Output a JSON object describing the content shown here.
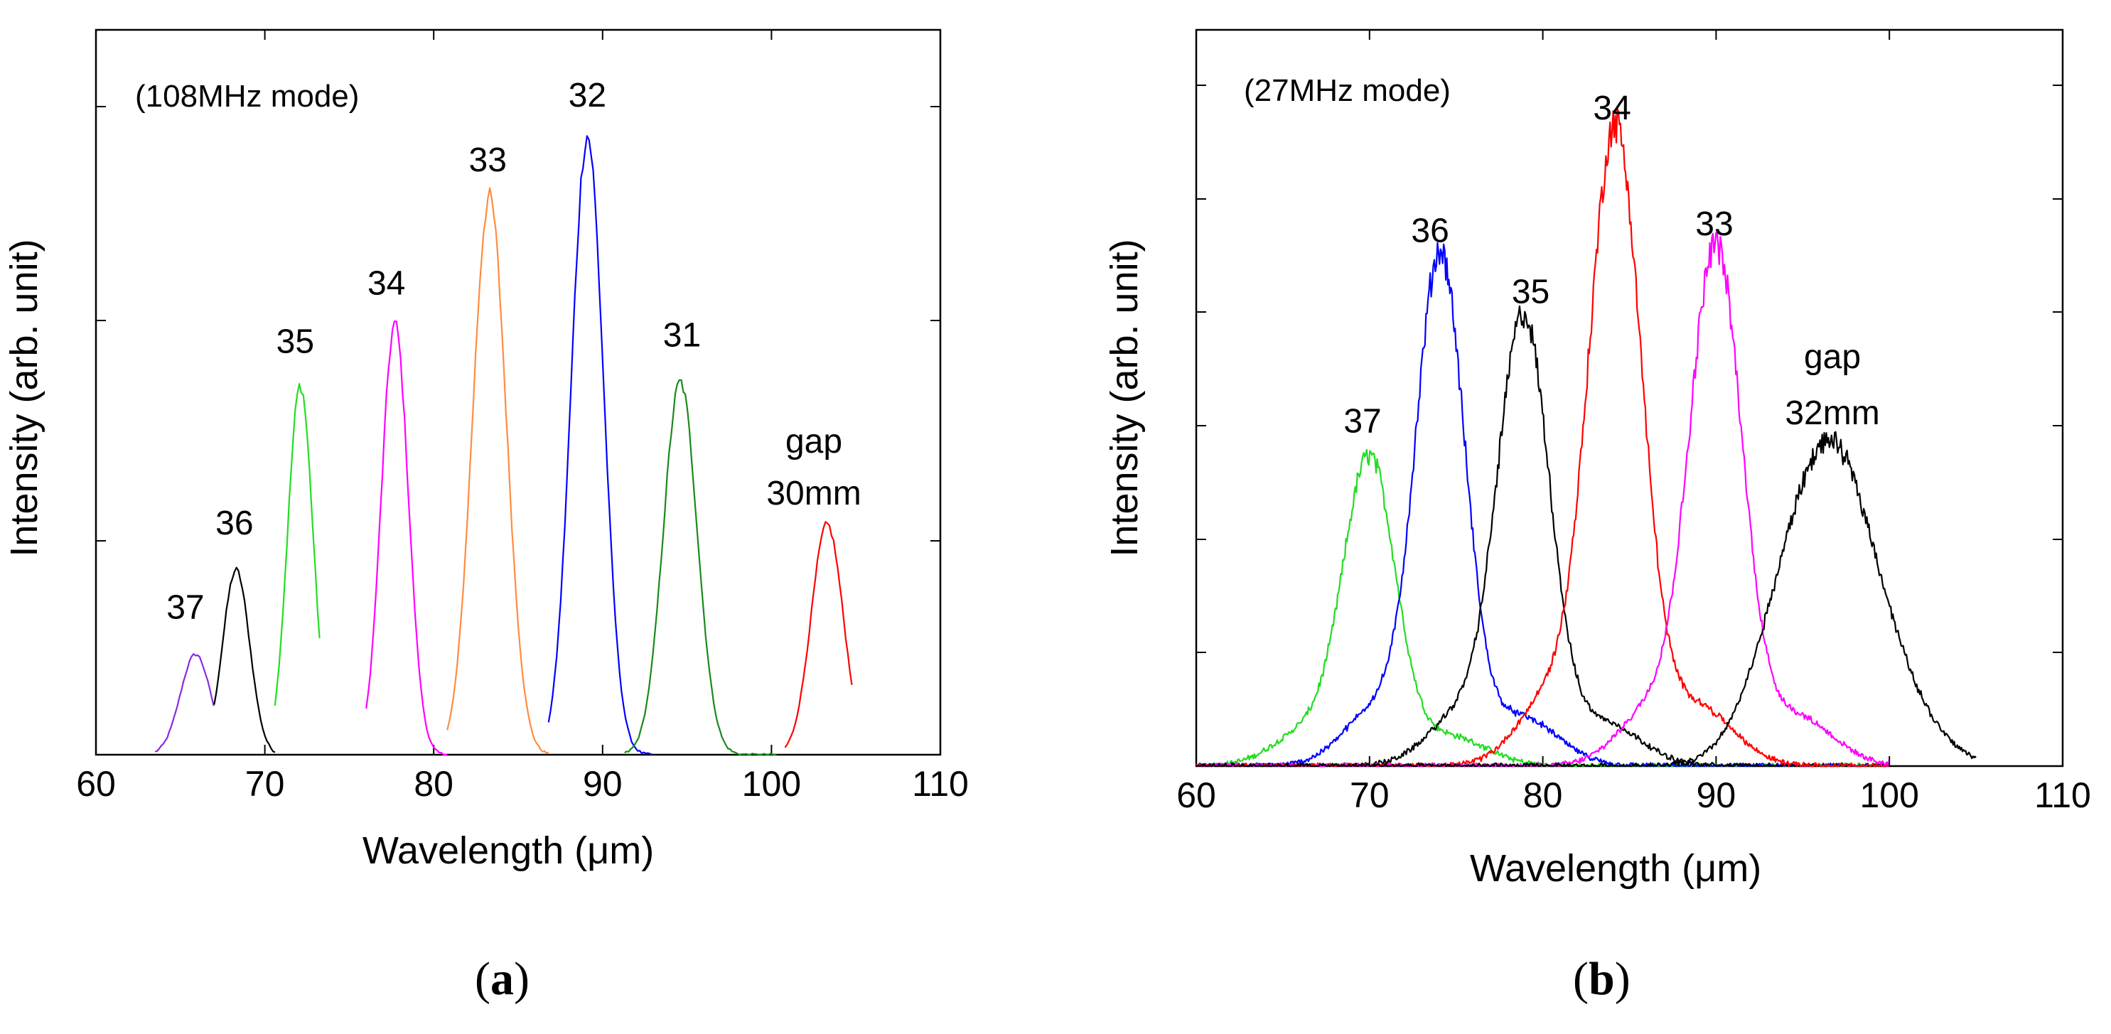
{
  "panels": [
    {
      "id": "a",
      "label": "a"
    },
    {
      "id": "b",
      "label": "b"
    }
  ],
  "chart_data": [
    {
      "type": "line",
      "panel": "a",
      "annotation": "(108MHz mode)",
      "xlabel_main": "Wavelength (",
      "xlabel_unit": "μm",
      "xlabel_close": ")",
      "ylabel": "Intensity (arb. unit)",
      "xlim": [
        60,
        110
      ],
      "ylim": [
        0,
        1
      ],
      "xticks": [
        60,
        70,
        80,
        90,
        100,
        110
      ],
      "yticks": [
        0.33,
        0.67,
        1.0
      ],
      "gap_text": [
        "gap",
        "30mm"
      ],
      "series": [
        {
          "name": "37",
          "color": "#8A2BE2",
          "center": 65.9,
          "width": 0.9,
          "peak": 0.155,
          "start": 63.5,
          "end": 67.0
        },
        {
          "name": "36",
          "color": "#000000",
          "center": 68.3,
          "width": 0.8,
          "peak": 0.285,
          "start": 67.0,
          "end": 70.6
        },
        {
          "name": "35",
          "color": "#22DD22",
          "center": 72.1,
          "width": 0.75,
          "peak": 0.57,
          "start": 70.6,
          "end": 73.3
        },
        {
          "name": "34",
          "color": "#FF00FF",
          "center": 77.7,
          "width": 0.8,
          "peak": 0.665,
          "start": 76.0,
          "end": 80.8
        },
        {
          "name": "33",
          "color": "#FF8C40",
          "center": 83.3,
          "width": 1.0,
          "peak": 0.86,
          "start": 80.8,
          "end": 86.8
        },
        {
          "name": "32",
          "color": "#0000FF",
          "center": 89.1,
          "width": 0.95,
          "peak": 0.955,
          "start": 86.8,
          "end": 93.0
        },
        {
          "name": "31",
          "color": "#1A8A1A",
          "center": 94.6,
          "width": 1.0,
          "peak": 0.575,
          "start": 91.3,
          "end": 100.4
        },
        {
          "name": "gap 30mm",
          "color": "#FF0000",
          "center": 103.3,
          "width": 0.95,
          "peak": 0.355,
          "start": 100.8,
          "end": 104.8
        }
      ],
      "peak_labels": [
        {
          "text": "37",
          "x": 65.3,
          "y": 0.21
        },
        {
          "text": "36",
          "x": 68.2,
          "y": 0.34
        },
        {
          "text": "35",
          "x": 71.8,
          "y": 0.62
        },
        {
          "text": "34",
          "x": 77.2,
          "y": 0.71
        },
        {
          "text": "33",
          "x": 83.2,
          "y": 0.9
        },
        {
          "text": "32",
          "x": 89.1,
          "y": 1.0
        },
        {
          "text": "31",
          "x": 94.7,
          "y": 0.63
        }
      ]
    },
    {
      "type": "line",
      "panel": "b",
      "annotation": "(27MHz mode)",
      "xlabel_main": "Wavelength (",
      "xlabel_unit": "μm",
      "xlabel_close": ")",
      "ylabel": "Intensity (arb. unit)",
      "xlim": [
        60,
        110
      ],
      "ylim": [
        0,
        1
      ],
      "xticks": [
        60,
        70,
        80,
        90,
        100,
        110
      ],
      "yticks": [
        0.167,
        0.333,
        0.5,
        0.667,
        0.833,
        1.0
      ],
      "gap_text": [
        "gap",
        "32mm"
      ],
      "series": [
        {
          "name": "37",
          "color": "#22DD22",
          "center": 70.0,
          "width": 1.5,
          "peak": 0.44,
          "start": 60.0,
          "end": 100.0
        },
        {
          "name": "36",
          "color": "#0000FF",
          "center": 74.1,
          "width": 1.4,
          "peak": 0.73,
          "start": 60.0,
          "end": 100.0
        },
        {
          "name": "35",
          "color": "#000000",
          "center": 78.9,
          "width": 1.5,
          "peak": 0.64,
          "start": 60.0,
          "end": 100.0
        },
        {
          "name": "34",
          "color": "#FF0000",
          "center": 84.2,
          "width": 1.5,
          "peak": 0.91,
          "start": 60.0,
          "end": 100.0
        },
        {
          "name": "33",
          "color": "#FF00FF",
          "center": 90.0,
          "width": 1.5,
          "peak": 0.74,
          "start": 60.0,
          "end": 100.0
        },
        {
          "name": "gap 32mm",
          "color": "#000000",
          "center": 96.6,
          "width": 2.6,
          "peak": 0.46,
          "start": 60.0,
          "end": 105.0
        }
      ],
      "peak_labels": [
        {
          "text": "37",
          "x": 69.6,
          "y": 0.49
        },
        {
          "text": "36",
          "x": 73.5,
          "y": 0.77
        },
        {
          "text": "35",
          "x": 79.3,
          "y": 0.68
        },
        {
          "text": "34",
          "x": 84.0,
          "y": 0.95
        },
        {
          "text": "33",
          "x": 89.9,
          "y": 0.78
        }
      ]
    }
  ]
}
